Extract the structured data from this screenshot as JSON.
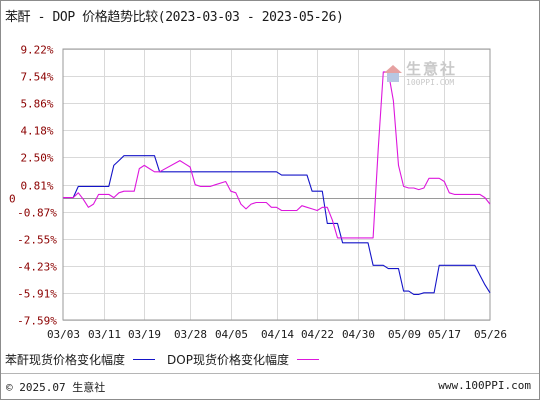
{
  "title": "苯酐 - DOP 价格趋势比较(2023-03-03 - 2023-05-26)",
  "watermark": {
    "name": "生意社",
    "url": "100PPI.COM"
  },
  "footer": {
    "copyright": "© 2025.07 生意社",
    "site": "www.100PPI.com"
  },
  "chart_data": {
    "type": "line",
    "title": "苯酐 - DOP 价格趋势比较(2023-03-03 - 2023-05-26)",
    "xlim": [
      "2023-03-03",
      "2023-05-26"
    ],
    "ylim": [
      -7.59,
      9.22
    ],
    "x_ticks": [
      "03/03",
      "03/11",
      "03/19",
      "03/28",
      "04/05",
      "04/14",
      "04/22",
      "04/30",
      "05/09",
      "05/17",
      "05/26"
    ],
    "y_ticks": [
      "9.22%",
      "7.54%",
      "5.86%",
      "4.18%",
      "2.50%",
      "0.81%",
      "-0.87%",
      "-2.55%",
      "-4.23%",
      "-5.91%",
      "-7.59%"
    ],
    "y_tick_values": [
      9.22,
      7.54,
      5.86,
      4.18,
      2.5,
      0.81,
      -0.87,
      -2.55,
      -4.23,
      -5.91,
      -7.59
    ],
    "zero_label": "0",
    "grid": true,
    "legend_position": "bottom",
    "series": [
      {
        "name": "苯酐现货价格变化幅度",
        "color": "#1414c8",
        "x": [
          "2023-03-03",
          "2023-03-05",
          "2023-03-06",
          "2023-03-12",
          "2023-03-13",
          "2023-03-14",
          "2023-03-15",
          "2023-03-21",
          "2023-03-22",
          "2023-04-14",
          "2023-04-15",
          "2023-04-20",
          "2023-04-21",
          "2023-04-23",
          "2023-04-24",
          "2023-04-26",
          "2023-04-27",
          "2023-05-02",
          "2023-05-03",
          "2023-05-05",
          "2023-05-06",
          "2023-05-08",
          "2023-05-09",
          "2023-05-10",
          "2023-05-11",
          "2023-05-12",
          "2023-05-13",
          "2023-05-14",
          "2023-05-15",
          "2023-05-16",
          "2023-05-22",
          "2023-05-23",
          "2023-05-24",
          "2023-05-25",
          "2023-05-26"
        ],
        "values": [
          0.0,
          0.0,
          0.7,
          0.7,
          2.0,
          2.3,
          2.6,
          2.6,
          1.6,
          1.6,
          1.4,
          1.4,
          0.4,
          0.4,
          -1.6,
          -1.6,
          -2.8,
          -2.8,
          -4.2,
          -4.2,
          -4.4,
          -4.4,
          -5.8,
          -5.8,
          -6.0,
          -6.0,
          -5.9,
          -5.9,
          -5.9,
          -4.2,
          -4.2,
          -4.2,
          -4.8,
          -5.4,
          -5.9
        ]
      },
      {
        "name": "DOP现货价格变化幅度",
        "color": "#dd17dd",
        "x": [
          "2023-03-03",
          "2023-03-05",
          "2023-03-06",
          "2023-03-07",
          "2023-03-08",
          "2023-03-09",
          "2023-03-10",
          "2023-03-11",
          "2023-03-12",
          "2023-03-13",
          "2023-03-14",
          "2023-03-15",
          "2023-03-17",
          "2023-03-18",
          "2023-03-19",
          "2023-03-20",
          "2023-03-21",
          "2023-03-22",
          "2023-03-26",
          "2023-03-27",
          "2023-03-28",
          "2023-03-29",
          "2023-03-30",
          "2023-04-01",
          "2023-04-02",
          "2023-04-04",
          "2023-04-05",
          "2023-04-06",
          "2023-04-07",
          "2023-04-08",
          "2023-04-09",
          "2023-04-10",
          "2023-04-12",
          "2023-04-13",
          "2023-04-14",
          "2023-04-15",
          "2023-04-18",
          "2023-04-19",
          "2023-04-20",
          "2023-04-21",
          "2023-04-22",
          "2023-04-23",
          "2023-04-24",
          "2023-04-25",
          "2023-04-26",
          "2023-04-27",
          "2023-05-03",
          "2023-05-04",
          "2023-05-05",
          "2023-05-06",
          "2023-05-07",
          "2023-05-08",
          "2023-05-09",
          "2023-05-10",
          "2023-05-11",
          "2023-05-12",
          "2023-05-13",
          "2023-05-14",
          "2023-05-15",
          "2023-05-16",
          "2023-05-17",
          "2023-05-18",
          "2023-05-19",
          "2023-05-24",
          "2023-05-25",
          "2023-05-26"
        ],
        "values": [
          0.0,
          0.0,
          0.3,
          -0.1,
          -0.6,
          -0.4,
          0.2,
          0.2,
          0.2,
          0.0,
          0.3,
          0.4,
          0.4,
          1.8,
          2.0,
          1.8,
          1.6,
          1.6,
          2.3,
          2.1,
          1.9,
          0.8,
          0.7,
          0.7,
          0.8,
          1.0,
          0.4,
          0.3,
          -0.4,
          -0.7,
          -0.4,
          -0.3,
          -0.3,
          -0.6,
          -0.6,
          -0.8,
          -0.8,
          -0.5,
          -0.6,
          -0.7,
          -0.8,
          -0.6,
          -0.6,
          -1.4,
          -2.5,
          -2.5,
          -2.5,
          3.0,
          7.8,
          7.8,
          6.0,
          2.0,
          0.7,
          0.6,
          0.6,
          0.5,
          0.6,
          1.2,
          1.2,
          1.2,
          1.0,
          0.3,
          0.2,
          0.2,
          0.0,
          -0.4
        ]
      }
    ]
  }
}
